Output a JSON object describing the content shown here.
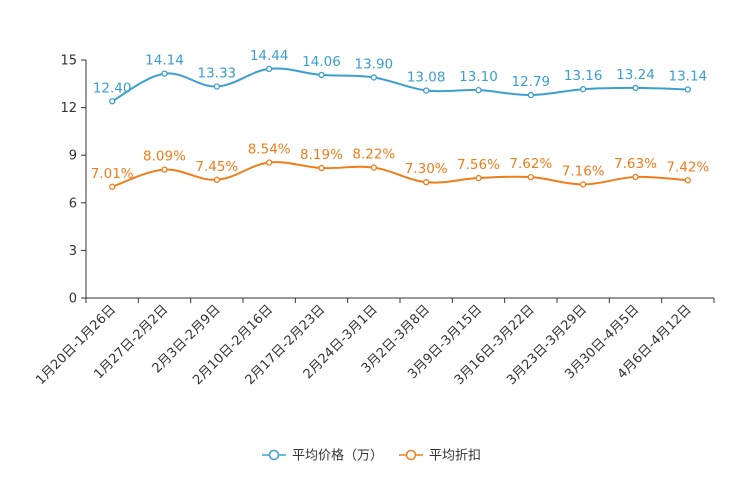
{
  "chart_data": {
    "type": "line",
    "title": "",
    "xlabel": "",
    "ylabel": "",
    "ylim": [
      0,
      15
    ],
    "yticks": [
      0,
      3,
      6,
      9,
      12,
      15
    ],
    "grid": false,
    "legend_position": "bottom-center",
    "categories": [
      "1月20日-1月26日",
      "1月27日-2月2日",
      "2月3日-2月9日",
      "2月10日-2月16日",
      "2月17日-2月23日",
      "2月24日-3月1日",
      "3月2日-3月8日",
      "3月9日-3月15日",
      "3月16日-3月22日",
      "3月23日-3月29日",
      "3月30日-4月5日",
      "4月6日-4月12日"
    ],
    "series": [
      {
        "name": "平均价格（万）",
        "color": "#3a9fd0",
        "values": [
          12.4,
          14.14,
          13.33,
          14.44,
          14.06,
          13.9,
          13.08,
          13.1,
          12.79,
          13.16,
          13.24,
          13.14
        ],
        "labels": [
          "12.40",
          "14.14",
          "13.33",
          "14.44",
          "14.06",
          "13.90",
          "13.08",
          "13.10",
          "12.79",
          "13.16",
          "13.24",
          "13.14"
        ]
      },
      {
        "name": "平均折扣",
        "color": "#f07d1a",
        "values": [
          7.01,
          8.09,
          7.45,
          8.54,
          8.19,
          8.22,
          7.3,
          7.56,
          7.62,
          7.16,
          7.63,
          7.42
        ],
        "labels": [
          "7.01%",
          "8.09%",
          "7.45%",
          "8.54%",
          "8.19%",
          "8.22%",
          "7.30%",
          "7.56%",
          "7.62%",
          "7.16%",
          "7.63%",
          "7.42%"
        ]
      }
    ]
  }
}
